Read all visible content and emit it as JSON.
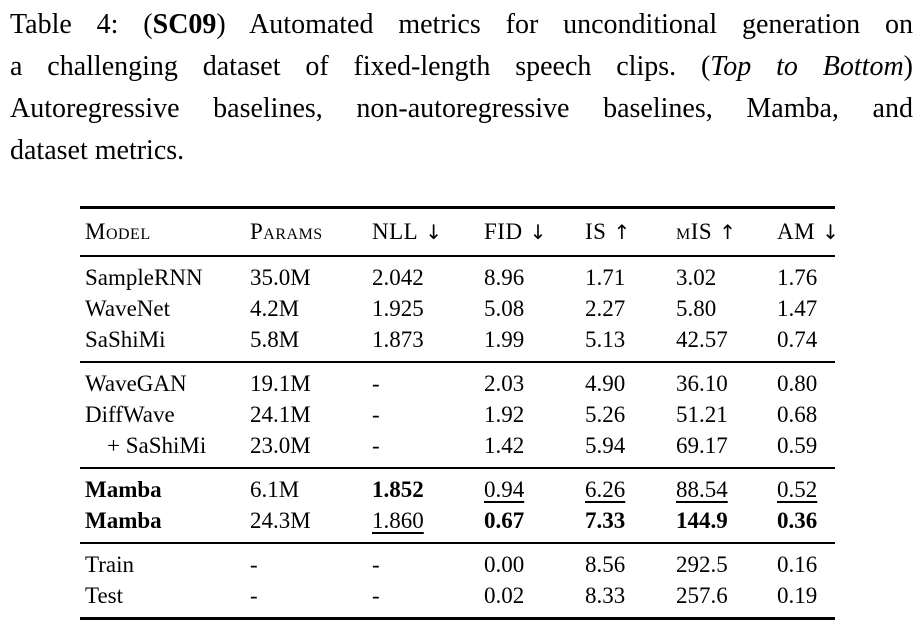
{
  "caption": {
    "lines": [
      {
        "pre": "Table 4: (",
        "bold": "SC09",
        "post": ") Automated metrics for unconditional generation on"
      },
      {
        "pre": "a challenging dataset of fixed-length speech clips. (",
        "italic": "Top to Bottom",
        "post": ")"
      },
      {
        "pre": "Autoregressive baselines, non-autoregressive baselines, Mamba, and"
      },
      {
        "pre": "dataset metrics."
      }
    ]
  },
  "table": {
    "header": [
      {
        "label": "Model",
        "arrow": ""
      },
      {
        "label": "Params",
        "arrow": ""
      },
      {
        "label": "NLL",
        "arrow": "↓"
      },
      {
        "label": "FID",
        "arrow": "↓"
      },
      {
        "label": "IS",
        "arrow": "↑"
      },
      {
        "label": "mIS",
        "arrow": "↑"
      },
      {
        "label": "AM",
        "arrow": "↓"
      }
    ],
    "sections": [
      {
        "name": "autoregressive-baselines",
        "rows": [
          [
            "SampleRNN",
            "35.0M",
            "2.042",
            "8.96",
            "1.71",
            "3.02",
            "1.76"
          ],
          [
            "WaveNet",
            "4.2M",
            "1.925",
            "5.08",
            "2.27",
            "5.80",
            "1.47"
          ],
          [
            "SaShiMi",
            "5.8M",
            "1.873",
            "1.99",
            "5.13",
            "42.57",
            "0.74"
          ]
        ]
      },
      {
        "name": "non-autoregressive-baselines",
        "rows": [
          [
            "WaveGAN",
            "19.1M",
            "-",
            "2.03",
            "4.90",
            "36.10",
            "0.80"
          ],
          [
            "DiffWave",
            "24.1M",
            "-",
            "1.92",
            "5.26",
            "51.21",
            "0.68"
          ],
          [
            "+ SaShiMi",
            "23.0M",
            "-",
            "1.42",
            "5.94",
            "69.17",
            "0.59"
          ]
        ]
      },
      {
        "name": "mamba",
        "rows": [
          [
            "Mamba",
            "6.1M",
            "1.852",
            "0.94",
            "6.26",
            "88.54",
            "0.52"
          ],
          [
            "Mamba",
            "24.3M",
            "1.860",
            "0.67",
            "7.33",
            "144.9",
            "0.36"
          ]
        ]
      },
      {
        "name": "dataset-metrics",
        "rows": [
          [
            "Train",
            "-",
            "-",
            "0.00",
            "8.56",
            "292.5",
            "0.16"
          ],
          [
            "Test",
            "-",
            "-",
            "0.02",
            "8.33",
            "257.6",
            "0.19"
          ]
        ]
      }
    ]
  },
  "colors": {
    "text": "#000000",
    "background": "#ffffff",
    "rule": "#000000"
  }
}
